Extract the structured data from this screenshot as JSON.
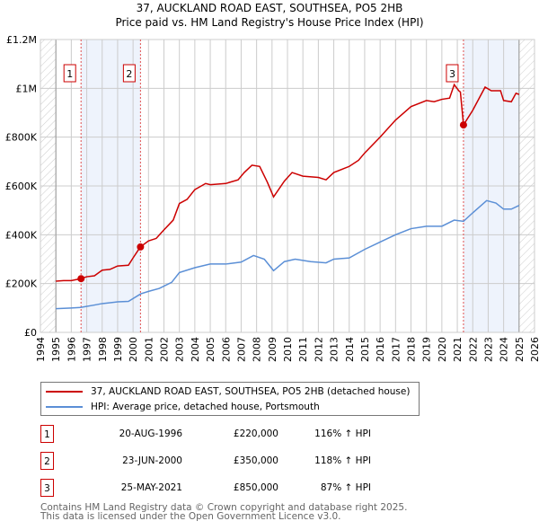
{
  "chart_data": {
    "type": "line",
    "title": "37, AUCKLAND ROAD EAST, SOUTHSEA, PO5 2HB",
    "subtitle": "Price paid vs. HM Land Registry's House Price Index (HPI)",
    "xlim": [
      1994,
      2026
    ],
    "ylim": [
      0,
      1200000
    ],
    "xticks": [
      "1994",
      "1995",
      "1996",
      "1997",
      "1998",
      "1999",
      "2000",
      "2001",
      "2002",
      "2003",
      "2004",
      "2005",
      "2006",
      "2007",
      "2008",
      "2009",
      "2010",
      "2011",
      "2012",
      "2013",
      "2014",
      "2015",
      "2016",
      "2017",
      "2018",
      "2019",
      "2020",
      "2021",
      "2022",
      "2023",
      "2024",
      "2025",
      "2026"
    ],
    "yticks": [
      {
        "v": 0,
        "l": "£0"
      },
      {
        "v": 200000,
        "l": "£200K"
      },
      {
        "v": 400000,
        "l": "£400K"
      },
      {
        "v": 600000,
        "l": "£600K"
      },
      {
        "v": 800000,
        "l": "£800K"
      },
      {
        "v": 1000000,
        "l": "£1M"
      },
      {
        "v": 1200000,
        "l": "£1.2M"
      }
    ],
    "data_range": [
      1995,
      2025
    ],
    "grid": true,
    "series": [
      {
        "name": "37, AUCKLAND ROAD EAST, SOUTHSEA, PO5 2HB (detached house)",
        "color": "#cc0000",
        "x": [
          1995,
          1995.5,
          1996,
          1996.6,
          1997,
          1997.5,
          1998,
          1998.5,
          1999,
          1999.7,
          2000,
          2000.47,
          2001,
          2001.5,
          2002,
          2002.6,
          2003,
          2003.5,
          2004,
          2004.7,
          2005,
          2006,
          2006.8,
          2007.2,
          2007.7,
          2008.2,
          2008.7,
          2009.1,
          2009.8,
          2010.3,
          2011,
          2012,
          2012.5,
          2013,
          2014,
          2014.6,
          2015,
          2016,
          2017,
          2018,
          2019,
          2019.5,
          2020,
          2020.5,
          2020.8,
          2021.1,
          2021.2,
          2021.4,
          2022,
          2022.8,
          2023.2,
          2023.8,
          2024,
          2024.5,
          2024.8,
          2025
        ],
        "y": [
          210000,
          212000,
          212000,
          220000,
          228000,
          232000,
          255000,
          258000,
          272000,
          275000,
          305000,
          350000,
          375000,
          385000,
          420000,
          460000,
          528000,
          545000,
          585000,
          610000,
          605000,
          610000,
          625000,
          655000,
          685000,
          680000,
          615000,
          555000,
          620000,
          655000,
          640000,
          635000,
          625000,
          655000,
          680000,
          705000,
          735000,
          800000,
          870000,
          925000,
          950000,
          945000,
          955000,
          960000,
          1015000,
          990000,
          985000,
          850000,
          910000,
          1005000,
          990000,
          990000,
          950000,
          945000,
          980000,
          975000
        ]
      },
      {
        "name": "HPI: Average price, detached house, Portsmouth",
        "color": "#5b8fd6",
        "x": [
          1995,
          1996,
          1996.6,
          1997.5,
          1998,
          1999,
          1999.7,
          2000.5,
          2001,
          2001.7,
          2002.5,
          2003,
          2004,
          2005,
          2006,
          2007,
          2007.8,
          2008.5,
          2009.1,
          2009.8,
          2010.5,
          2011.5,
          2012.5,
          2013,
          2014,
          2015,
          2016,
          2017,
          2018,
          2019,
          2020,
          2020.8,
          2021.4,
          2022,
          2022.9,
          2023.5,
          2024,
          2024.5,
          2025
        ],
        "y": [
          97000,
          100000,
          102000,
          112000,
          118000,
          125000,
          127000,
          158000,
          168000,
          180000,
          205000,
          245000,
          265000,
          280000,
          280000,
          288000,
          315000,
          300000,
          253000,
          290000,
          300000,
          290000,
          285000,
          300000,
          305000,
          340000,
          370000,
          400000,
          425000,
          435000,
          435000,
          460000,
          455000,
          490000,
          540000,
          530000,
          505000,
          505000,
          520000
        ]
      }
    ],
    "sales": [
      {
        "id": "1",
        "x": 1996.63,
        "y": 220000,
        "date": "20-AUG-1996",
        "price": "£220,000",
        "hpi": "116% ↑ HPI"
      },
      {
        "id": "2",
        "x": 2000.48,
        "y": 350000,
        "date": "23-JUN-2000",
        "price": "£350,000",
        "hpi": "118% ↑ HPI"
      },
      {
        "id": "3",
        "x": 2021.4,
        "y": 850000,
        "date": "25-MAY-2021",
        "price": "£850,000",
        "hpi": "87% ↑ HPI"
      }
    ]
  },
  "footer": {
    "line1": "Contains HM Land Registry data © Crown copyright and database right 2025.",
    "line2": "This data is licensed under the Open Government Licence v3.0."
  }
}
